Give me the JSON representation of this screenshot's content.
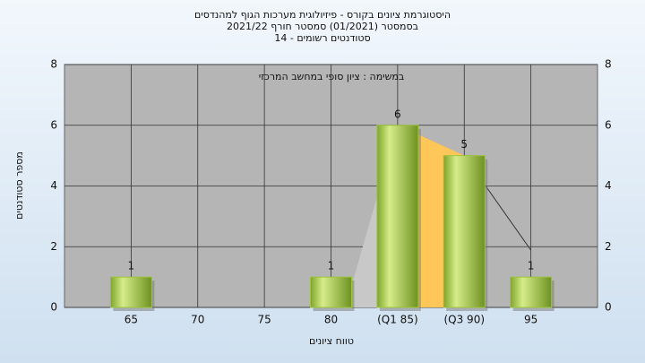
{
  "chart_data": {
    "type": "bar",
    "title": "היסטוגרמת ציונים בקורס - פיזיולוגית מערכות הגוף למהנדסים",
    "subtitle": "בסמסטר  (01/2021)  סמסטר חורף 2021/22",
    "subtitle2": "סטודנטים רשומים - 14",
    "annotation": "במשימה : ציון סופי במחשב המרכזי",
    "x_label": "טווח ציונים",
    "y_label": "מספר סטודנטים",
    "categories": [
      "65",
      "70",
      "75",
      "80",
      "(Q1 85)",
      "(Q3 90)",
      "95"
    ],
    "values": [
      1,
      0,
      0,
      1,
      6,
      5,
      1
    ],
    "color": "#9dc23c",
    "ylim": [
      0,
      8
    ],
    "yticks": [
      0,
      2,
      4,
      6,
      8
    ],
    "grid": true
  }
}
